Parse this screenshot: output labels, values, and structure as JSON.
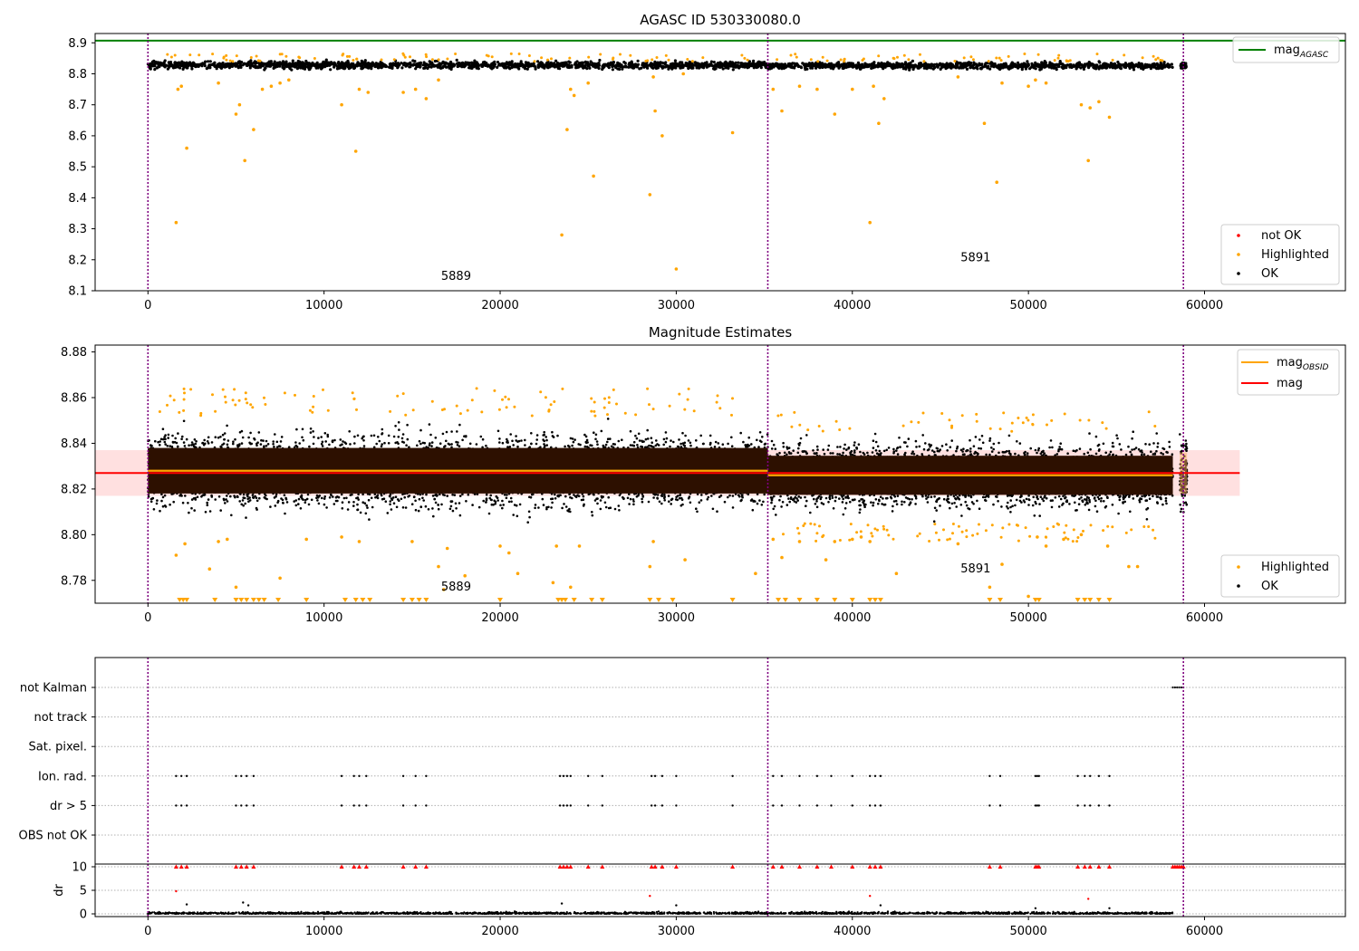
{
  "chart_data": [
    {
      "type": "scatter",
      "title": "AGASC ID 530330080.0",
      "xlim": [
        -3000,
        68000
      ],
      "ylim": [
        8.1,
        8.93
      ],
      "xticks": [
        "0",
        "10000",
        "20000",
        "30000",
        "40000",
        "50000",
        "60000"
      ],
      "yticks": [
        "8.1",
        "8.2",
        "8.3",
        "8.4",
        "8.5",
        "8.6",
        "8.7",
        "8.8",
        "8.9"
      ],
      "vlines": [
        0,
        35200,
        58800
      ],
      "agasc_mag": 8.907,
      "agasc_legend": "mag",
      "agasc_legend_sub": "AGASC",
      "obsid_labels": [
        {
          "text": "5889",
          "x": 17500,
          "y": 8.135
        },
        {
          "text": "5891",
          "x": 47000,
          "y": 8.195
        }
      ],
      "legend": [
        "not OK",
        "Highlighted",
        "OK"
      ],
      "segments": [
        {
          "x0": 0,
          "x1": 35200,
          "mean": 8.828,
          "spread": 0.018
        },
        {
          "x0": 35200,
          "x1": 58200,
          "mean": 8.826,
          "spread": 0.016
        }
      ],
      "cluster_x": 58800,
      "highlighted": [
        [
          1600,
          8.32
        ],
        [
          1900,
          8.76
        ],
        [
          2200,
          8.56
        ],
        [
          1700,
          8.75
        ],
        [
          4000,
          8.77
        ],
        [
          5000,
          8.67
        ],
        [
          5200,
          8.7
        ],
        [
          5500,
          8.52
        ],
        [
          6000,
          8.62
        ],
        [
          6500,
          8.75
        ],
        [
          7000,
          8.76
        ],
        [
          7500,
          8.77
        ],
        [
          8000,
          8.78
        ],
        [
          11000,
          8.7
        ],
        [
          11800,
          8.55
        ],
        [
          12000,
          8.75
        ],
        [
          12500,
          8.74
        ],
        [
          14500,
          8.74
        ],
        [
          15200,
          8.75
        ],
        [
          15800,
          8.72
        ],
        [
          16500,
          8.78
        ],
        [
          23500,
          8.28
        ],
        [
          23800,
          8.62
        ],
        [
          24000,
          8.75
        ],
        [
          24200,
          8.73
        ],
        [
          25000,
          8.77
        ],
        [
          25300,
          8.47
        ],
        [
          28500,
          8.41
        ],
        [
          28700,
          8.79
        ],
        [
          28800,
          8.68
        ],
        [
          29200,
          8.6
        ],
        [
          30000,
          8.17
        ],
        [
          30400,
          8.8
        ],
        [
          33200,
          8.61
        ],
        [
          35500,
          8.75
        ],
        [
          36000,
          8.68
        ],
        [
          37000,
          8.76
        ],
        [
          38000,
          8.75
        ],
        [
          39000,
          8.67
        ],
        [
          40000,
          8.75
        ],
        [
          41000,
          8.32
        ],
        [
          41200,
          8.76
        ],
        [
          41500,
          8.64
        ],
        [
          41800,
          8.72
        ],
        [
          46000,
          8.79
        ],
        [
          47500,
          8.64
        ],
        [
          48200,
          8.45
        ],
        [
          48500,
          8.77
        ],
        [
          50000,
          8.76
        ],
        [
          50400,
          8.78
        ],
        [
          51000,
          8.77
        ],
        [
          53000,
          8.7
        ],
        [
          53400,
          8.52
        ],
        [
          53500,
          8.69
        ],
        [
          54000,
          8.71
        ],
        [
          54600,
          8.66
        ]
      ]
    },
    {
      "type": "scatter",
      "title": "Magnitude Estimates",
      "xlim": [
        -3000,
        68000
      ],
      "ylim": [
        8.77,
        8.883
      ],
      "xticks": [
        "0",
        "10000",
        "20000",
        "30000",
        "40000",
        "50000",
        "60000"
      ],
      "yticks": [
        "8.78",
        "8.80",
        "8.82",
        "8.84",
        "8.86",
        "8.88"
      ],
      "vlines": [
        0,
        35200,
        58800
      ],
      "mag": 8.827,
      "mag_band": [
        8.817,
        8.837
      ],
      "mag_band_x1": 62000,
      "obsid_segments": [
        {
          "x0": 0,
          "x1": 35200,
          "mean": 8.828,
          "spread": 0.0105
        },
        {
          "x0": 35200,
          "x1": 58200,
          "mean": 8.826,
          "spread": 0.009
        }
      ],
      "obsid_labels": [
        {
          "text": "5889",
          "x": 17500,
          "y": 8.7755
        },
        {
          "text": "5891",
          "x": 47000,
          "y": 8.7835
        }
      ],
      "legend_lines": [
        {
          "label": "mag",
          "sub": "OBSID",
          "color": "#ffa500"
        },
        {
          "label": "mag",
          "sub": "",
          "color": "#ff0000"
        }
      ],
      "legend": [
        "Highlighted",
        "OK"
      ],
      "highlighted": [
        [
          1600,
          8.791
        ],
        [
          2100,
          8.796
        ],
        [
          3500,
          8.785
        ],
        [
          4000,
          8.797
        ],
        [
          4500,
          8.798
        ],
        [
          5000,
          8.777
        ],
        [
          7500,
          8.781
        ],
        [
          9000,
          8.798
        ],
        [
          11000,
          8.799
        ],
        [
          12000,
          8.797
        ],
        [
          15000,
          8.797
        ],
        [
          16500,
          8.786
        ],
        [
          16800,
          8.776
        ],
        [
          17000,
          8.794
        ],
        [
          18000,
          8.782
        ],
        [
          20000,
          8.795
        ],
        [
          20500,
          8.792
        ],
        [
          21000,
          8.783
        ],
        [
          23000,
          8.779
        ],
        [
          23200,
          8.795
        ],
        [
          24000,
          8.777
        ],
        [
          24500,
          8.795
        ],
        [
          28500,
          8.786
        ],
        [
          28700,
          8.797
        ],
        [
          30500,
          8.789
        ],
        [
          34500,
          8.783
        ],
        [
          35500,
          8.798
        ],
        [
          36000,
          8.79
        ],
        [
          37000,
          8.797
        ],
        [
          38500,
          8.789
        ],
        [
          39000,
          8.797
        ],
        [
          40000,
          8.798
        ],
        [
          40500,
          8.799
        ],
        [
          41000,
          8.797
        ],
        [
          42500,
          8.783
        ],
        [
          46000,
          8.796
        ],
        [
          47800,
          8.777
        ],
        [
          48500,
          8.787
        ],
        [
          50000,
          8.773
        ],
        [
          50500,
          8.799
        ],
        [
          51000,
          8.795
        ],
        [
          52000,
          8.798
        ],
        [
          53000,
          8.8
        ],
        [
          54500,
          8.795
        ],
        [
          55700,
          8.786
        ],
        [
          56200,
          8.786
        ]
      ],
      "clipped_low": [
        1800,
        2000,
        2200,
        3800,
        5000,
        5300,
        5600,
        6000,
        6300,
        6600,
        7400,
        9000,
        11200,
        11800,
        12200,
        12600,
        14500,
        15000,
        15400,
        15800,
        20000,
        23300,
        23500,
        23700,
        24200,
        25200,
        25800,
        28500,
        29000,
        29800,
        33200,
        35800,
        36200,
        37000,
        38000,
        39000,
        40000,
        41000,
        41300,
        41600,
        47800,
        48400,
        50400,
        50600,
        52800,
        53200,
        53500,
        54000,
        54600
      ]
    },
    {
      "type": "scatter",
      "xlim": [
        -3000,
        68000
      ],
      "xticks": [
        "0",
        "10000",
        "20000",
        "30000",
        "40000",
        "50000",
        "60000"
      ],
      "vlines": [
        0,
        35200,
        58800
      ],
      "flag_labels": [
        "not Kalman",
        "not track",
        "Sat. pixel.",
        "Ion. rad.",
        "dr > 5",
        "OBS not OK"
      ],
      "flag_points_x": [
        1600,
        1900,
        2200,
        5000,
        5300,
        5600,
        6000,
        11000,
        11700,
        12000,
        12400,
        14500,
        15200,
        15800,
        23400,
        23600,
        23800,
        24000,
        25000,
        25800,
        28600,
        28800,
        29200,
        30000,
        33200,
        35500,
        36000,
        37000,
        38000,
        38800,
        40000,
        41000,
        41300,
        41600,
        47800,
        48400,
        50400,
        50500,
        50600,
        52800,
        53200,
        53500,
        54000,
        54600
      ],
      "not_kalman_x": [
        58200,
        58900
      ],
      "dr_ylabel": "dr",
      "dr_ylim": [
        0,
        10
      ],
      "dr_yticks": [
        "0",
        "5",
        "10"
      ],
      "dr_outliers": [
        [
          1600,
          4.8
        ],
        [
          2200,
          2.0
        ],
        [
          5400,
          2.4
        ],
        [
          5700,
          1.8
        ],
        [
          23500,
          2.2
        ],
        [
          28500,
          3.8
        ],
        [
          30000,
          1.8
        ],
        [
          41000,
          3.8
        ],
        [
          41600,
          1.8
        ],
        [
          50400,
          1.2
        ],
        [
          53400,
          3.2
        ],
        [
          54600,
          1.2
        ]
      ]
    }
  ]
}
